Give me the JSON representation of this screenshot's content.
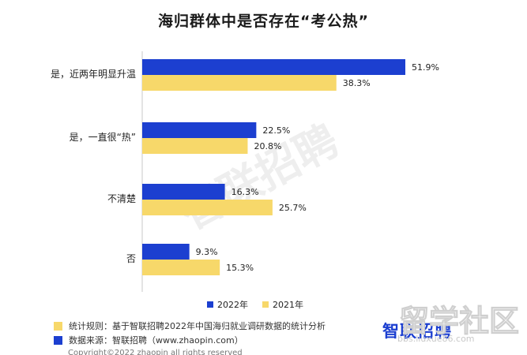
{
  "chart_data": {
    "type": "bar",
    "orientation": "horizontal",
    "title": "海归群体中是否存在“考公热”",
    "categories": [
      "是，近两年明显升温",
      "是，一直很“热”",
      "不清楚",
      "否"
    ],
    "series": [
      {
        "name": "2022年",
        "values": [
          51.9,
          22.5,
          16.3,
          9.3
        ],
        "labels": [
          "51.9%",
          "22.5%",
          "16.3%",
          "9.3%"
        ],
        "color": "#1c3fd0"
      },
      {
        "name": "2021年",
        "values": [
          38.3,
          20.8,
          25.7,
          15.3
        ],
        "labels": [
          "38.3%",
          "20.8%",
          "25.7%",
          "15.3%"
        ],
        "color": "#f7d86a"
      }
    ],
    "xlim": [
      0,
      60
    ],
    "grid": false,
    "legend_position": "bottom-center"
  },
  "notes": [
    {
      "text": "统计规则：基于智联招聘2022年中国海归就业调研数据的统计分析",
      "color": "#f7d86a"
    },
    {
      "text": "数据来源：智联招聘（www.zhaopin.com）",
      "color": "#1c3fd0"
    }
  ],
  "copyright": "Copyright©2022 zhaopin all rights reserved",
  "brand": {
    "logo_text": "智联招聘"
  },
  "watermarks": {
    "main": "智联招聘",
    "site": "留学社区",
    "url": "bbs.liuxue86.com"
  }
}
